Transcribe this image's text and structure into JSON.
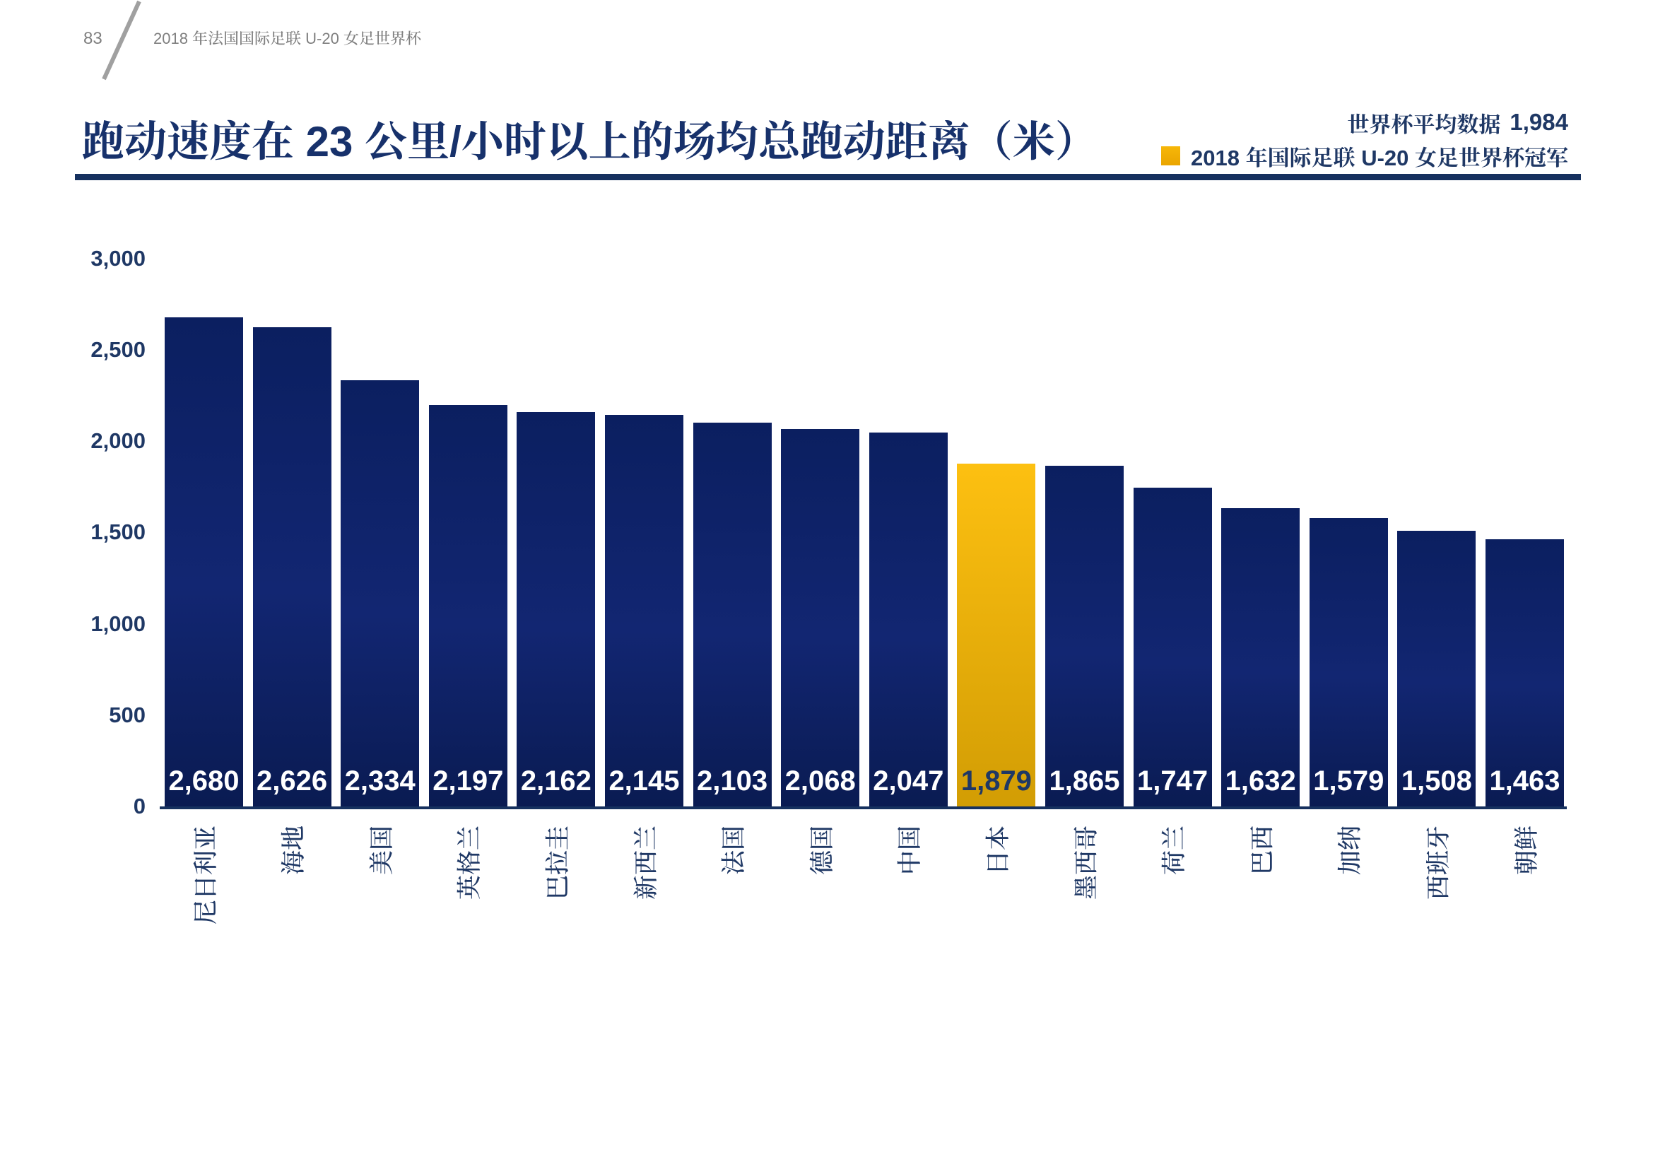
{
  "page": {
    "number": "83",
    "header_title": "2018 年法国国际足联 U-20 女足世界杯"
  },
  "title": {
    "text": "跑动速度在 23 公里/小时以上的场均总跑动距离（米）"
  },
  "legend": {
    "average_label": "世界杯平均数据",
    "average_value": "1,984",
    "champion_swatch": "gold-square",
    "champion_label": "2018 年国际足联 U-20 女足世界杯冠军"
  },
  "colors": {
    "navy_text": "#1f3865",
    "title_navy": "#17316b",
    "rule_navy": "#16315f",
    "bar_top": "#0b1f60",
    "bar_mid": "#122672",
    "bar_bottom": "#0a1b52",
    "gold_top": "#fdc011",
    "gold_bottom": "#d29d04",
    "legend_gold": "#eaa500",
    "header_gray": "#7f7f7f",
    "slash_gray": "#a0a0a0",
    "value_white": "#ffffff"
  },
  "chart_data": {
    "type": "bar",
    "title": "跑动速度在 23 公里/小时以上的场均总跑动距离（米）",
    "unit": "米",
    "categories": [
      "尼日利亚",
      "海地",
      "美国",
      "英格兰",
      "巴拉圭",
      "新西兰",
      "法国",
      "德国",
      "中国",
      "日本",
      "墨西哥",
      "荷兰",
      "巴西",
      "加纳",
      "西班牙",
      "朝鲜"
    ],
    "values": [
      2680,
      2626,
      2334,
      2197,
      2162,
      2145,
      2103,
      2068,
      2047,
      1879,
      1865,
      1747,
      1632,
      1579,
      1508,
      1463
    ],
    "value_labels": [
      "2,680",
      "2,626",
      "2,334",
      "2,197",
      "2,162",
      "2,145",
      "2,103",
      "2,068",
      "2,047",
      "1,879",
      "1,865",
      "1,747",
      "1,632",
      "1,579",
      "1,508",
      "1,463"
    ],
    "highlight_index": 9,
    "highlight_label": "2018 年国际足联 U-20 女足世界杯冠军",
    "world_cup_average": 1984,
    "ylim": [
      0,
      3000
    ],
    "y_ticks": [
      "0",
      "500",
      "1,000",
      "1,500",
      "2,000",
      "2,500",
      "3,000"
    ],
    "grid": "off",
    "legend_position": "top-right"
  }
}
